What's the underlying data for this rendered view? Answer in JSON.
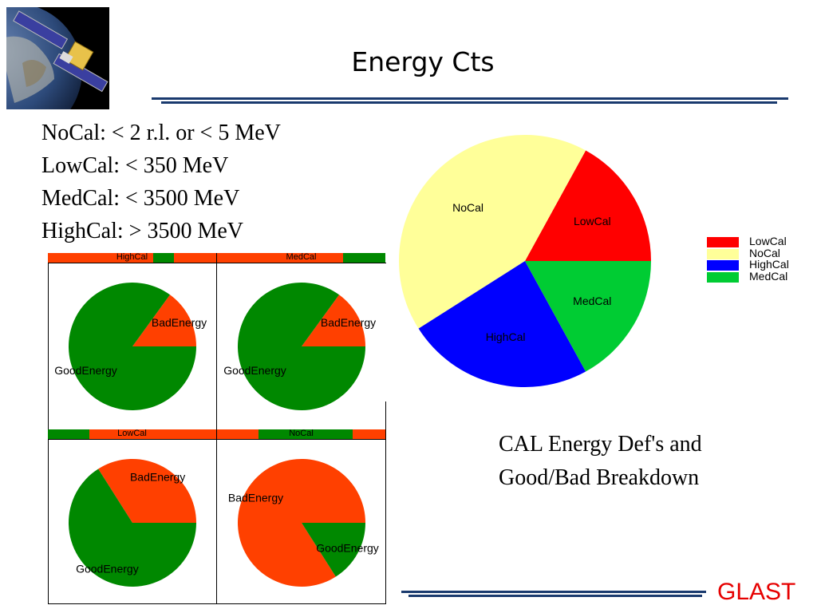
{
  "slide": {
    "title": "Energy Cts",
    "definitions": [
      "NoCal: < 2 r.l. or < 5 MeV",
      "LowCal: < 350 MeV",
      "MedCal: < 3500 MeV",
      "HighCal: > 3500 MeV"
    ],
    "caption": [
      "CAL Energy Def's and",
      "Good/Bad Breakdown"
    ],
    "logo": "GLAST",
    "colors": {
      "rule": "#1a3a6e",
      "logo": "#e60000"
    }
  },
  "chart_data": [
    {
      "type": "pie",
      "name": "category-breakdown",
      "categories": [
        "LowCal",
        "NoCal",
        "HighCal",
        "MedCal"
      ],
      "values": [
        17,
        42,
        24,
        17
      ],
      "colors": [
        "#ff0000",
        "#ffff99",
        "#0000ff",
        "#00cc33"
      ],
      "legend": [
        "LowCal",
        "NoCal",
        "HighCal",
        "MedCal"
      ],
      "legend_placement": "right"
    },
    {
      "type": "pie",
      "title": "HighCal",
      "categories": [
        "BadEnergy",
        "GoodEnergy"
      ],
      "values": [
        15,
        85
      ],
      "colors": [
        "#ff4000",
        "#008800"
      ],
      "title_bar_colors": [
        "#ff4000",
        "#008800"
      ]
    },
    {
      "type": "pie",
      "title": "MedCal",
      "categories": [
        "BadEnergy",
        "GoodEnergy"
      ],
      "values": [
        15,
        85
      ],
      "colors": [
        "#ff4000",
        "#008800"
      ],
      "title_bar_colors": [
        "#ff4000",
        "#008800"
      ]
    },
    {
      "type": "pie",
      "title": "LowCal",
      "categories": [
        "BadEnergy",
        "GoodEnergy"
      ],
      "values": [
        34,
        66
      ],
      "colors": [
        "#ff4000",
        "#008800"
      ],
      "title_bar_colors": [
        "#ff4000",
        "#008800"
      ]
    },
    {
      "type": "pie",
      "title": "NoCal",
      "categories": [
        "BadEnergy",
        "GoodEnergy"
      ],
      "values": [
        84,
        16
      ],
      "colors": [
        "#ff4000",
        "#008800"
      ],
      "title_bar_colors": [
        "#ff4000",
        "#008800"
      ]
    }
  ]
}
